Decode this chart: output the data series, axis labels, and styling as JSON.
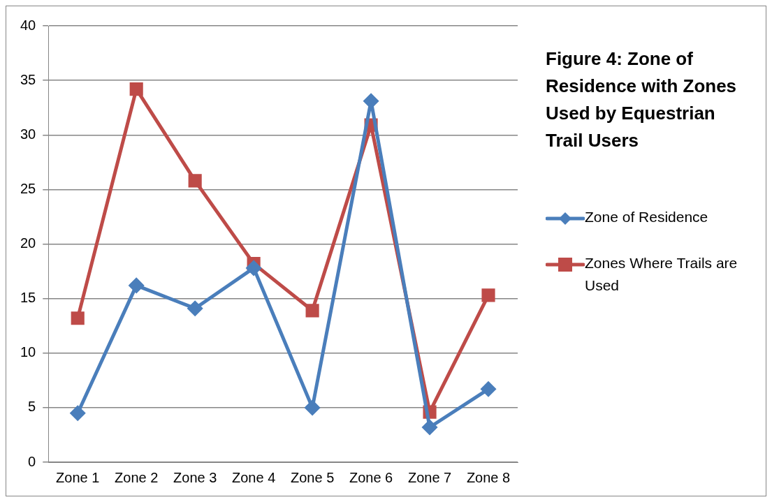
{
  "chart_data": {
    "type": "line",
    "title": "Figure 4: Zone of Residence with Zones Used by Equestrian Trail Users",
    "categories": [
      "Zone 1",
      "Zone 2",
      "Zone 3",
      "Zone 4",
      "Zone 5",
      "Zone 6",
      "Zone 7",
      "Zone 8"
    ],
    "series": [
      {
        "name": "Zone of Residence",
        "color": "#4a7ebb",
        "marker": "diamond",
        "values": [
          4.5,
          16.2,
          14.1,
          17.8,
          5.0,
          33.1,
          3.2,
          6.7
        ]
      },
      {
        "name": "Zones Where Trails are Used",
        "color": "#be4b48",
        "marker": "square",
        "values": [
          13.2,
          34.2,
          25.8,
          18.2,
          13.9,
          30.9,
          4.6,
          15.3
        ]
      }
    ],
    "ylim": [
      0,
      40
    ],
    "yticks": [
      0,
      5,
      10,
      15,
      20,
      25,
      30,
      35,
      40
    ],
    "grid": "y",
    "legend": "right",
    "line_style": "solid"
  }
}
